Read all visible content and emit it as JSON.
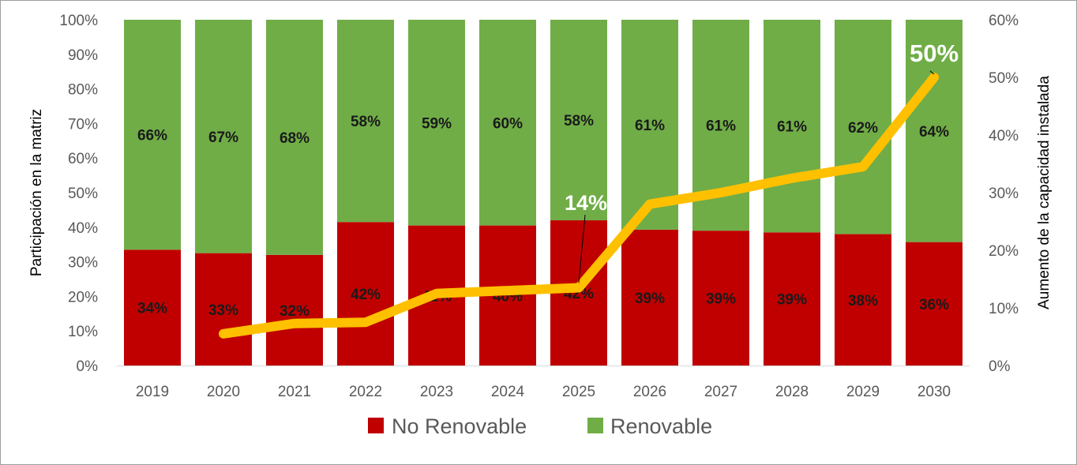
{
  "chart_data": {
    "type": "bar",
    "stacked": true,
    "categories": [
      "2019",
      "2020",
      "2021",
      "2022",
      "2023",
      "2024",
      "2025",
      "2026",
      "2027",
      "2028",
      "2029",
      "2030"
    ],
    "series": [
      {
        "name": "No Renovable",
        "color": "#c00000",
        "values": [
          0.335,
          0.325,
          0.32,
          0.415,
          0.405,
          0.405,
          0.42,
          0.393,
          0.39,
          0.385,
          0.38,
          0.357
        ],
        "labels": [
          "34%",
          "33%",
          "32%",
          "42%",
          "41%",
          "40%",
          "42%",
          "39%",
          "39%",
          "39%",
          "38%",
          "36%"
        ]
      },
      {
        "name": "Renovable",
        "color": "#70ad47",
        "values": [
          0.665,
          0.675,
          0.68,
          0.585,
          0.595,
          0.595,
          0.58,
          0.607,
          0.61,
          0.615,
          0.62,
          0.643
        ],
        "labels": [
          "66%",
          "67%",
          "68%",
          "58%",
          "59%",
          "60%",
          "58%",
          "61%",
          "61%",
          "61%",
          "62%",
          "64%"
        ]
      }
    ],
    "line": {
      "color": "#ffc000",
      "axis": "right",
      "values": [
        null,
        0.055,
        0.073,
        0.075,
        0.125,
        0.13,
        0.135,
        0.28,
        0.3,
        0.325,
        0.345,
        0.5
      ],
      "callouts": [
        {
          "index": 6,
          "text": "14%"
        },
        {
          "index": 11,
          "text": "50%"
        }
      ]
    },
    "ylabel": "Participación en la matriz",
    "y2label": "Aumento de la capacidad instalada",
    "ylim": [
      0,
      1
    ],
    "y2lim": [
      0,
      0.6
    ],
    "yticks": [
      "0%",
      "10%",
      "20%",
      "30%",
      "40%",
      "50%",
      "60%",
      "70%",
      "80%",
      "90%",
      "100%"
    ],
    "y2ticks": [
      "0%",
      "10%",
      "20%",
      "30%",
      "40%",
      "50%",
      "60%"
    ],
    "legend": "bottom",
    "grid": false
  }
}
